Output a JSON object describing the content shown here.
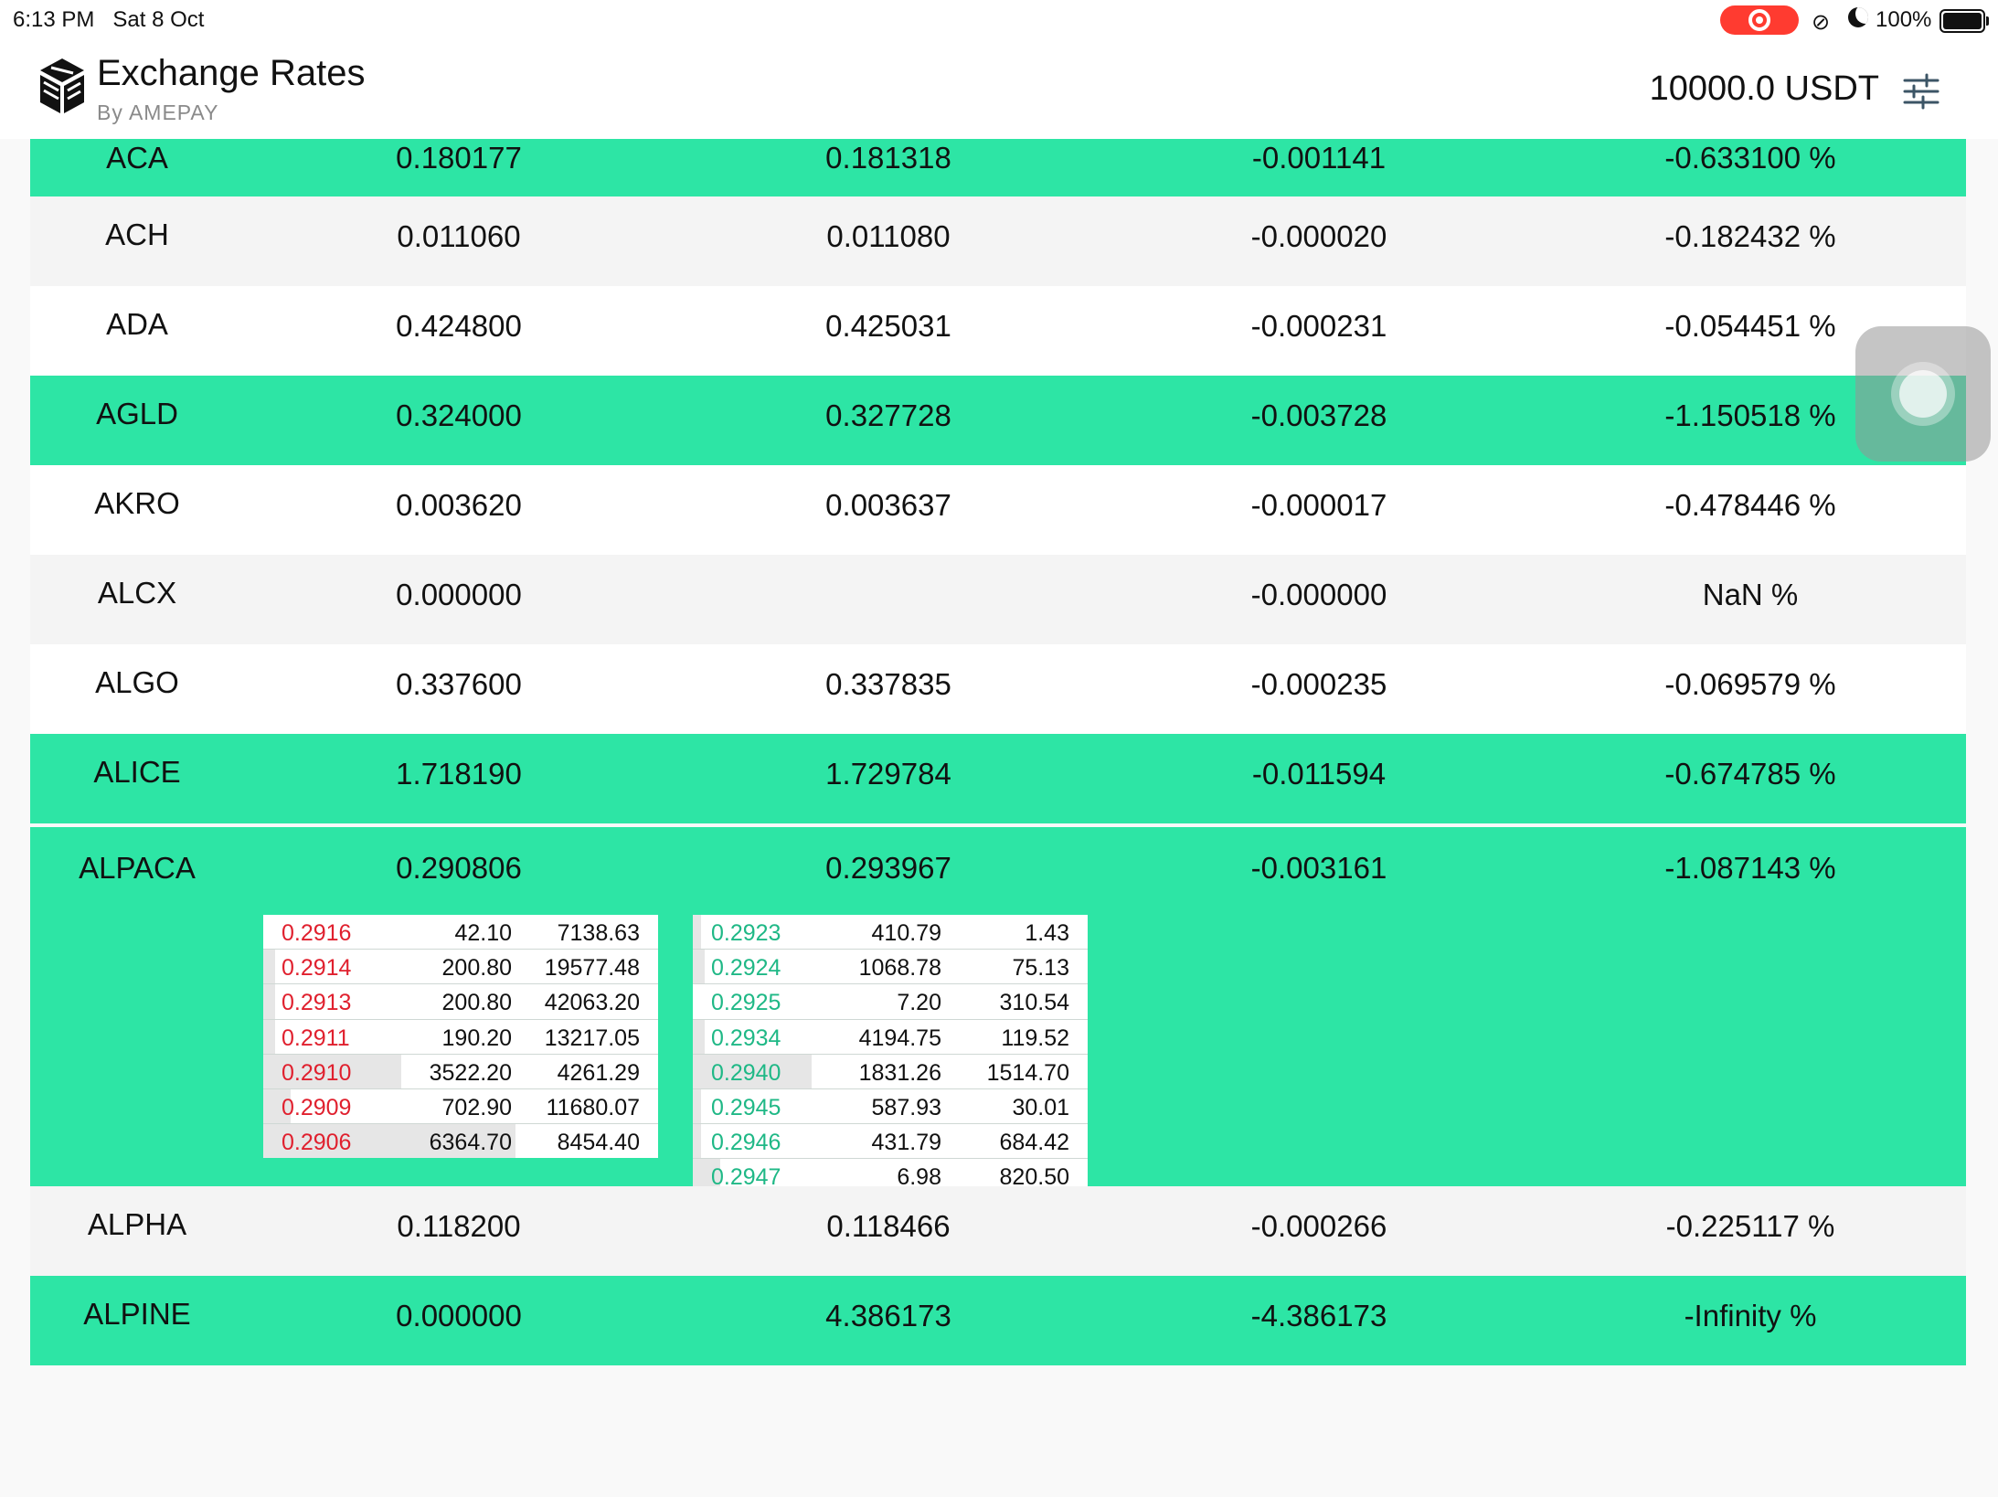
{
  "status_bar": {
    "time": "6:13 PM",
    "date": "Sat 8 Oct",
    "battery": "100%"
  },
  "header": {
    "title": "Exchange Rates",
    "subtitle": "By AMEPAY",
    "balance": "10000.0 USDT"
  },
  "icons": {
    "logo": "cube-logo-icon",
    "settings": "sliders-icon",
    "recording": "screen-record-icon",
    "assistive": "assistive-touch-icon"
  },
  "colors": {
    "highlight": "#2de5a5",
    "bid": "#e0202e",
    "ask": "#1fb886"
  },
  "rows": [
    {
      "symbol": "ACA",
      "v1": "0.180177",
      "v2": "0.181318",
      "v3": "-0.001141",
      "v4": "-0.633100 %"
    },
    {
      "symbol": "ACH",
      "v1": "0.011060",
      "v2": "0.011080",
      "v3": "-0.000020",
      "v4": "-0.182432 %"
    },
    {
      "symbol": "ADA",
      "v1": "0.424800",
      "v2": "0.425031",
      "v3": "-0.000231",
      "v4": "-0.054451 %"
    },
    {
      "symbol": "AGLD",
      "v1": "0.324000",
      "v2": "0.327728",
      "v3": "-0.003728",
      "v4": "-1.150518 %"
    },
    {
      "symbol": "AKRO",
      "v1": "0.003620",
      "v2": "0.003637",
      "v3": "-0.000017",
      "v4": "-0.478446 %"
    },
    {
      "symbol": "ALCX",
      "v1": "0.000000",
      "v2": "",
      "v3": "-0.000000",
      "v4": "NaN %"
    },
    {
      "symbol": "ALGO",
      "v1": "0.337600",
      "v2": "0.337835",
      "v3": "-0.000235",
      "v4": "-0.069579 %"
    },
    {
      "symbol": "ALICE",
      "v1": "1.718190",
      "v2": "1.729784",
      "v3": "-0.011594",
      "v4": "-0.674785 %"
    },
    {
      "symbol": "ALPACA",
      "v1": "0.290806",
      "v2": "0.293967",
      "v3": "-0.003161",
      "v4": "-1.087143 %"
    },
    {
      "symbol": "ALPHA",
      "v1": "0.118200",
      "v2": "0.118466",
      "v3": "-0.000266",
      "v4": "-0.225117 %"
    },
    {
      "symbol": "ALPINE",
      "v1": "0.000000",
      "v2": "4.386173",
      "v3": "-4.386173",
      "v4": "-Infinity %"
    }
  ],
  "bids": [
    {
      "price": "0.2916",
      "qty": "42.10",
      "total": "7138.63",
      "depth": 0.0
    },
    {
      "price": "0.2914",
      "qty": "200.80",
      "total": "19577.48",
      "depth": 0.03
    },
    {
      "price": "0.2913",
      "qty": "200.80",
      "total": "42063.20",
      "depth": 0.03
    },
    {
      "price": "0.2911",
      "qty": "190.20",
      "total": "13217.05",
      "depth": 0.03
    },
    {
      "price": "0.2910",
      "qty": "3522.20",
      "total": "4261.29",
      "depth": 0.35
    },
    {
      "price": "0.2909",
      "qty": "702.90",
      "total": "11680.07",
      "depth": 0.07
    },
    {
      "price": "0.2906",
      "qty": "6364.70",
      "total": "8454.40",
      "depth": 0.64
    }
  ],
  "asks": [
    {
      "price": "0.2923",
      "qty": "410.79",
      "total": "1.43",
      "depth": 0.02
    },
    {
      "price": "0.2924",
      "qty": "1068.78",
      "total": "75.13",
      "depth": 0.03
    },
    {
      "price": "0.2925",
      "qty": "7.20",
      "total": "310.54",
      "depth": 0.0
    },
    {
      "price": "0.2934",
      "qty": "4194.75",
      "total": "119.52",
      "depth": 0.03
    },
    {
      "price": "0.2940",
      "qty": "1831.26",
      "total": "1514.70",
      "depth": 0.3
    },
    {
      "price": "0.2945",
      "qty": "587.93",
      "total": "30.01",
      "depth": 0.02
    },
    {
      "price": "0.2946",
      "qty": "431.79",
      "total": "684.42",
      "depth": 0.02
    },
    {
      "price": "0.2947",
      "qty": "6.98",
      "total": "820.50",
      "depth": 0.07
    }
  ]
}
